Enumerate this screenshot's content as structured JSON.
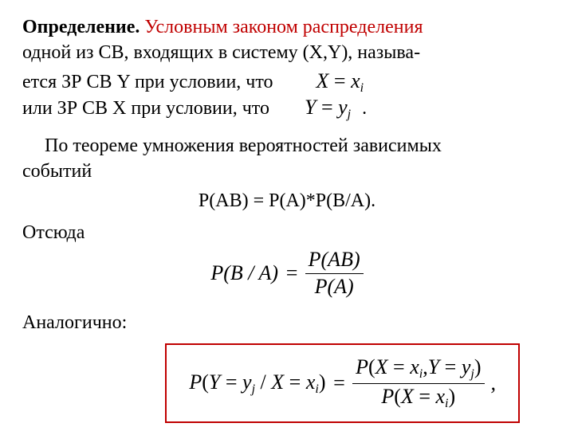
{
  "colors": {
    "accent": "#c00000",
    "text": "#000000",
    "background": "#ffffff",
    "box_border": "#c00000"
  },
  "fonts": {
    "body_family": "Times New Roman",
    "body_size_pt": 18,
    "math_size_pt": 20
  },
  "p1": {
    "def_label": "Определение.",
    "def_colored": " Условным законом распределения",
    "rest": "одной из  СВ, входящих в систему (Х,Y), называ-"
  },
  "p2": {
    "line1_text": "ется ЗР  СВ  Y  при условии, что",
    "line1_math_lhs": "X",
    "line1_math_eq": "=",
    "line1_math_rhs_base": "x",
    "line1_math_rhs_sub": "i",
    "line2_text": " или  ЗР  СВ  Х  при условии, что",
    "line2_math_lhs": "Y",
    "line2_math_eq": "=",
    "line2_math_rhs_base": "y",
    "line2_math_rhs_sub": "j",
    "line2_tail": "."
  },
  "p3": {
    "l1": "По теореме умножения вероятностей зависимых",
    "l2": "событий",
    "formula": "Р(АВ) = Р(А)*Р(В/А)."
  },
  "p4": {
    "label": "Отсюда",
    "lhs": "P(B / A)",
    "eq": "=",
    "num": "P(AB)",
    "den": "P(A)"
  },
  "p5": {
    "label": "Аналогично:",
    "lhs_P": "P",
    "lhs_open": "(",
    "lhs_Y": "Y",
    "lhs_eq1": "=",
    "lhs_y": "y",
    "lhs_j": "j",
    "lhs_slash": " / ",
    "lhs_X": "X",
    "lhs_eq2": "=",
    "lhs_x": "x",
    "lhs_i": "i",
    "lhs_close": ")",
    "eq": "=",
    "num_P": "P",
    "num_open": "(",
    "num_X": "X",
    "num_eq1": "=",
    "num_x": "x",
    "num_i": "i",
    "num_comma": ",",
    "num_Y": "Y",
    "num_eq2": "=",
    "num_y": "y",
    "num_j": "j",
    "num_close": ")",
    "den_P": "P",
    "den_open": "(",
    "den_X": "X",
    "den_eq": "=",
    "den_x": "x",
    "den_i": "i",
    "den_close": ")",
    "tail": ","
  }
}
